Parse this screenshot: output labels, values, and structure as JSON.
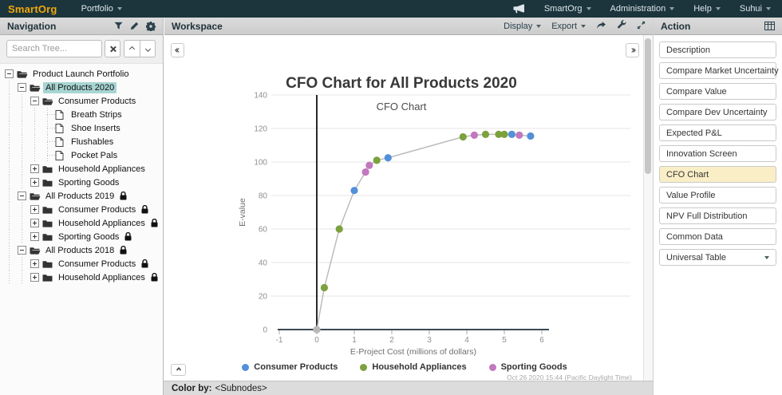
{
  "top_bar": {
    "logo": "SmartOrg",
    "portfolio_menu": "Portfolio",
    "menus_right": [
      {
        "label": "SmartOrg"
      },
      {
        "label": "Administration"
      },
      {
        "label": "Help"
      },
      {
        "label": "Suhui"
      }
    ]
  },
  "navigation": {
    "title": "Navigation",
    "search_placeholder": "Search Tree...",
    "tree": [
      {
        "label": "Product Launch Portfolio",
        "level": 0,
        "toggle": "minus",
        "icon": "folder-open",
        "locked": false,
        "selected": false
      },
      {
        "label": "All Products 2020",
        "level": 1,
        "toggle": "minus",
        "icon": "folder-open",
        "locked": false,
        "selected": true
      },
      {
        "label": "Consumer Products",
        "level": 2,
        "toggle": "minus",
        "icon": "folder-open",
        "locked": false,
        "selected": false
      },
      {
        "label": "Breath Strips",
        "level": 3,
        "toggle": null,
        "icon": "file",
        "locked": false,
        "selected": false
      },
      {
        "label": "Shoe Inserts",
        "level": 3,
        "toggle": null,
        "icon": "file",
        "locked": false,
        "selected": false
      },
      {
        "label": "Flushables",
        "level": 3,
        "toggle": null,
        "icon": "file",
        "locked": false,
        "selected": false
      },
      {
        "label": "Pocket Pals",
        "level": 3,
        "toggle": null,
        "icon": "file",
        "locked": false,
        "selected": false
      },
      {
        "label": "Household Appliances",
        "level": 2,
        "toggle": "plus",
        "icon": "folder",
        "locked": false,
        "selected": false
      },
      {
        "label": "Sporting Goods",
        "level": 2,
        "toggle": "plus",
        "icon": "folder",
        "locked": false,
        "selected": false
      },
      {
        "label": "All Products 2019",
        "level": 1,
        "toggle": "minus",
        "icon": "folder-open",
        "locked": true,
        "selected": false
      },
      {
        "label": "Consumer Products",
        "level": 2,
        "toggle": "plus",
        "icon": "folder",
        "locked": true,
        "selected": false
      },
      {
        "label": "Household Appliances",
        "level": 2,
        "toggle": "plus",
        "icon": "folder",
        "locked": true,
        "selected": false
      },
      {
        "label": "Sporting Goods",
        "level": 2,
        "toggle": "plus",
        "icon": "folder",
        "locked": true,
        "selected": false
      },
      {
        "label": "All Products 2018",
        "level": 1,
        "toggle": "minus",
        "icon": "folder-open",
        "locked": true,
        "selected": false
      },
      {
        "label": "Consumer Products",
        "level": 2,
        "toggle": "plus",
        "icon": "folder",
        "locked": true,
        "selected": false
      },
      {
        "label": "Household Appliances",
        "level": 2,
        "toggle": "plus",
        "icon": "folder",
        "locked": true,
        "selected": false
      }
    ]
  },
  "workspace": {
    "title": "Workspace",
    "toolbar": {
      "display": "Display",
      "export": "Export"
    },
    "timestamp": "Oct 26 2020 15:44 (Pacific Daylight Time)",
    "status": {
      "label": "Color by:",
      "value": "<Subnodes>"
    }
  },
  "action": {
    "title": "Action",
    "buttons": [
      {
        "label": "Description",
        "active": false
      },
      {
        "label": "Compare Market Uncertainty",
        "active": false
      },
      {
        "label": "Compare Value",
        "active": false
      },
      {
        "label": "Compare Dev Uncertainty",
        "active": false
      },
      {
        "label": "Expected P&L",
        "active": false
      },
      {
        "label": "Innovation Screen",
        "active": false
      },
      {
        "label": "CFO Chart",
        "active": true
      },
      {
        "label": "Value Profile",
        "active": false
      },
      {
        "label": "NPV Full Distribution",
        "active": false
      },
      {
        "label": "Common Data",
        "active": false
      }
    ],
    "dropdown_label": "Universal Table"
  },
  "chart_data": {
    "type": "line",
    "title": "CFO Chart for All Products 2020",
    "subtitle": "CFO Chart",
    "xlabel": "E-Project Cost (millions of dollars)",
    "ylabel": "E-value",
    "xlim": [
      -1,
      6
    ],
    "ylim": [
      0,
      140
    ],
    "x_ticks": [
      -1,
      0,
      1,
      2,
      3,
      4,
      5,
      6
    ],
    "y_ticks": [
      0,
      20,
      40,
      60,
      80,
      100,
      120,
      140
    ],
    "grid": true,
    "legend_position": "bottom",
    "line_color": "#bcbcbc",
    "origin_color": "#b8b8b8",
    "series": [
      {
        "name": "Consumer Products",
        "color": "#5290d8"
      },
      {
        "name": "Household Appliances",
        "color": "#7ba23c"
      },
      {
        "name": "Sporting Goods",
        "color": "#c178be"
      }
    ],
    "points": [
      {
        "x": 0,
        "y": 0,
        "series": "origin"
      },
      {
        "x": 0.2,
        "y": 25,
        "series": "Household Appliances"
      },
      {
        "x": 0.6,
        "y": 60,
        "series": "Household Appliances"
      },
      {
        "x": 1.0,
        "y": 83,
        "series": "Consumer Products"
      },
      {
        "x": 1.3,
        "y": 94,
        "series": "Sporting Goods"
      },
      {
        "x": 1.4,
        "y": 98,
        "series": "Sporting Goods"
      },
      {
        "x": 1.6,
        "y": 101,
        "series": "Household Appliances"
      },
      {
        "x": 1.9,
        "y": 102.5,
        "series": "Consumer Products"
      },
      {
        "x": 3.9,
        "y": 115,
        "series": "Household Appliances"
      },
      {
        "x": 4.2,
        "y": 116,
        "series": "Sporting Goods"
      },
      {
        "x": 4.5,
        "y": 116.5,
        "series": "Household Appliances"
      },
      {
        "x": 4.85,
        "y": 116.5,
        "series": "Household Appliances"
      },
      {
        "x": 5.0,
        "y": 116.5,
        "series": "Household Appliances"
      },
      {
        "x": 5.2,
        "y": 116.5,
        "series": "Consumer Products"
      },
      {
        "x": 5.4,
        "y": 116,
        "series": "Sporting Goods"
      },
      {
        "x": 5.7,
        "y": 115.5,
        "series": "Consumer Products"
      }
    ]
  }
}
